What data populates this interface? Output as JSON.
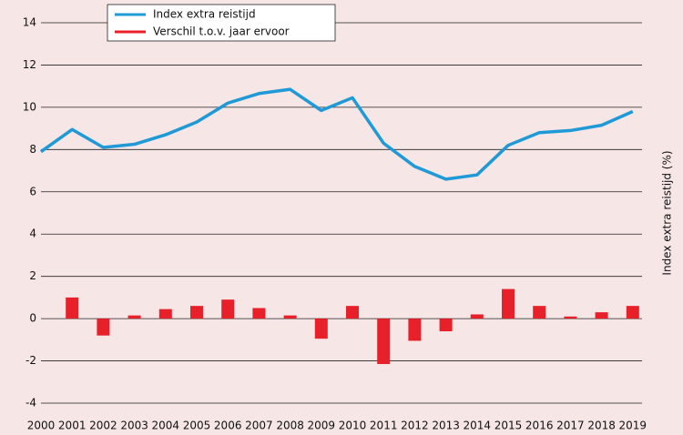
{
  "chart_data": {
    "type": "bar_line",
    "categories": [
      "2000",
      "2001",
      "2002",
      "2003",
      "2004",
      "2005",
      "2006",
      "2007",
      "2008",
      "2009",
      "2010",
      "2011",
      "2012",
      "2013",
      "2014",
      "2015",
      "2016",
      "2017",
      "2018",
      "2019"
    ],
    "series": [
      {
        "name": "Index extra reistijd",
        "type": "line",
        "color": "#1f9ad6",
        "values": [
          7.9,
          8.95,
          8.1,
          8.25,
          8.7,
          9.3,
          10.2,
          10.65,
          10.85,
          9.85,
          10.45,
          8.3,
          7.2,
          6.6,
          6.8,
          8.2,
          8.8,
          8.9,
          9.15,
          9.8
        ]
      },
      {
        "name": "Verschil t.o.v. jaar ervoor",
        "type": "bar",
        "color": "#e8202a",
        "values": [
          null,
          1.0,
          -0.8,
          0.15,
          0.45,
          0.6,
          0.9,
          0.5,
          0.15,
          -0.95,
          0.6,
          -2.15,
          -1.05,
          -0.6,
          0.2,
          1.4,
          0.6,
          0.1,
          0.3,
          0.6
        ]
      }
    ],
    "y_label": "Index extra reistijd (%)",
    "ylim": [
      -4,
      14
    ],
    "yticks": [
      -4,
      -2,
      0,
      2,
      4,
      6,
      8,
      10,
      12,
      14
    ],
    "grid": true
  }
}
